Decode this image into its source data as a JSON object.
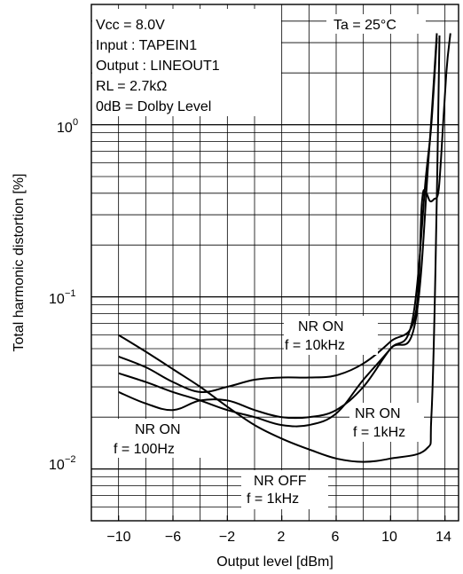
{
  "chart_data": {
    "type": "line",
    "xlabel": "Output level [dBm]",
    "ylabel": "Total harmonic distortion [%]",
    "xlim": [
      -12,
      15
    ],
    "ylim": [
      0.005,
      5
    ],
    "yscale": "log",
    "grid": true,
    "x_ticks": [
      "−10",
      "−6",
      "−2",
      "2",
      "6",
      "10",
      "14"
    ],
    "x_tick_values": [
      -10,
      -6,
      -2,
      2,
      6,
      10,
      14
    ],
    "y_ticks": [
      {
        "value": 0.01,
        "base": "10",
        "exp": "−2"
      },
      {
        "value": 0.1,
        "base": "10",
        "exp": "−1"
      },
      {
        "value": 1,
        "base": "10",
        "exp": "0"
      }
    ],
    "conditions": [
      "Vcc = 8.0V",
      "Input : TAPEIN1",
      "Output : LINEOUT1",
      "RL = 2.7kΩ",
      "0dB = Dolby Level"
    ],
    "ambient": "Ta = 25°C",
    "curve_labels": [
      {
        "line1": "NR ON",
        "line2": "f = 10kHz"
      },
      {
        "line1": "NR ON",
        "line2": "f = 1kHz"
      },
      {
        "line1": "NR ON",
        "line2": "f = 100Hz"
      },
      {
        "line1": "NR OFF",
        "line2": "f = 1kHz"
      }
    ],
    "series": [
      {
        "x": [
          -10,
          -8,
          -6,
          -4,
          -2,
          0,
          2,
          4,
          6,
          8,
          10,
          11.8,
          12.3,
          12.6,
          12.9,
          13.2,
          13.5,
          13.7,
          14.1,
          14.4
        ],
        "y": [
          0.045,
          0.039,
          0.032,
          0.028,
          0.03,
          0.033,
          0.034,
          0.034,
          0.035,
          0.041,
          0.055,
          0.077,
          0.35,
          0.4,
          0.36,
          0.37,
          0.4,
          0.62,
          2.0,
          3.4
        ]
      },
      {
        "x": [
          -10,
          -8,
          -6,
          -4,
          -2,
          0,
          2,
          4,
          6,
          8,
          10,
          11.6,
          12.6,
          13.0,
          13.4
        ],
        "y": [
          0.036,
          0.032,
          0.028,
          0.025,
          0.022,
          0.02,
          0.018,
          0.018,
          0.021,
          0.033,
          0.05,
          0.073,
          0.5,
          1.0,
          3.2
        ]
      },
      {
        "x": [
          -10,
          -8,
          -6,
          -4,
          -2,
          0,
          2,
          4,
          6,
          8,
          10,
          11.8,
          12.8,
          13.4
        ],
        "y": [
          0.028,
          0.024,
          0.022,
          0.025,
          0.025,
          0.022,
          0.02,
          0.02,
          0.022,
          0.03,
          0.05,
          0.07,
          0.65,
          3.4
        ]
      },
      {
        "x": [
          -10,
          -8,
          -6,
          -4,
          -2,
          0,
          2,
          4,
          6,
          8,
          10,
          12.6,
          13.0,
          13.3,
          13.6
        ],
        "y": [
          0.06,
          0.048,
          0.038,
          0.03,
          0.023,
          0.018,
          0.015,
          0.013,
          0.0115,
          0.011,
          0.0115,
          0.013,
          0.02,
          0.14,
          3.3
        ]
      }
    ]
  }
}
